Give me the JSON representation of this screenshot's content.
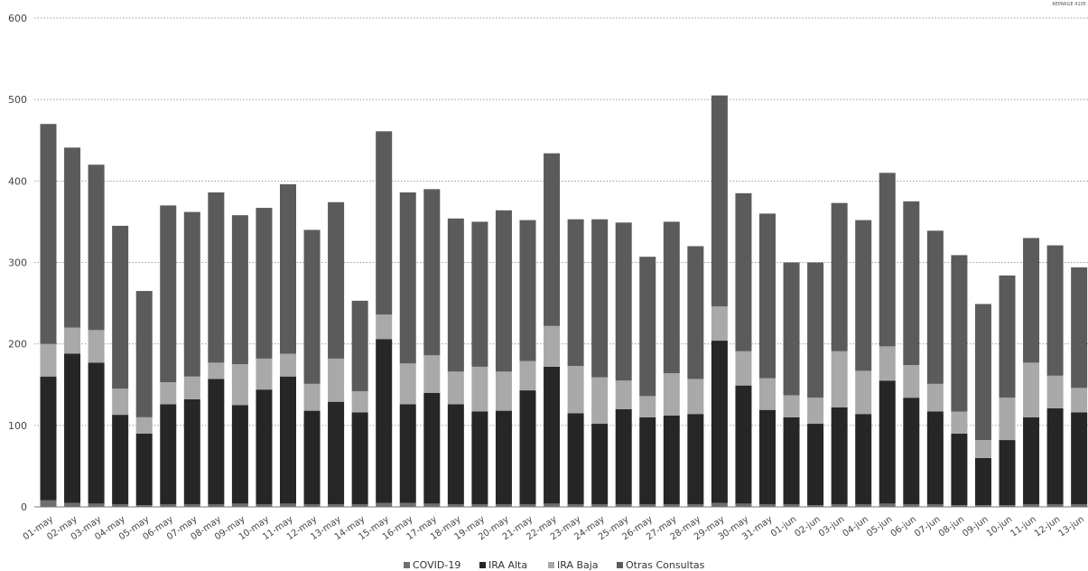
{
  "corner_note": "REPARGE 4105",
  "chart_data": {
    "type": "bar",
    "stacked": true,
    "title": "",
    "xlabel": "",
    "ylabel": "",
    "ylim": [
      0,
      600
    ],
    "yticks": [
      0,
      100,
      200,
      300,
      400,
      500,
      600
    ],
    "grid": true,
    "legend_position": "bottom",
    "categories": [
      "01-may",
      "02-may",
      "03-may",
      "04-may",
      "05-may",
      "06-may",
      "07-may",
      "08-may",
      "09-may",
      "10-may",
      "11-may",
      "12-may",
      "13-may",
      "14-may",
      "15-may",
      "16-may",
      "17-may",
      "18-may",
      "19-may",
      "20-may",
      "21-may",
      "22-may",
      "23-may",
      "24-may",
      "25-may",
      "26-may",
      "27-may",
      "28-may",
      "29-may",
      "30-may",
      "31-may",
      "01-jun",
      "02-jun",
      "03-jun",
      "04-jun",
      "05-jun",
      "06-jun",
      "07-jun",
      "08-jun",
      "09-jun",
      "10-jun",
      "11-jun",
      "12-jun",
      "13-jun"
    ],
    "series": [
      {
        "name": "COVID-19",
        "color": "#6f6f6f",
        "values": [
          8,
          5,
          4,
          3,
          2,
          3,
          3,
          3,
          4,
          3,
          4,
          3,
          3,
          3,
          5,
          5,
          4,
          3,
          3,
          3,
          3,
          4,
          3,
          3,
          3,
          3,
          3,
          3,
          5,
          4,
          3,
          3,
          2,
          3,
          3,
          4,
          3,
          3,
          2,
          2,
          2,
          3,
          3,
          3
        ]
      },
      {
        "name": "IRA Alta",
        "color": "#262626",
        "values": [
          152,
          183,
          173,
          110,
          88,
          123,
          129,
          154,
          121,
          141,
          156,
          115,
          126,
          113,
          201,
          121,
          136,
          123,
          114,
          115,
          140,
          168,
          112,
          99,
          117,
          107,
          109,
          111,
          199,
          145,
          116,
          107,
          100,
          119,
          111,
          151,
          131,
          114,
          88,
          58,
          80,
          107,
          118,
          113
        ]
      },
      {
        "name": "IRA Baja",
        "color": "#a9a9a9",
        "values": [
          40,
          32,
          40,
          32,
          20,
          27,
          28,
          20,
          50,
          38,
          28,
          33,
          53,
          26,
          30,
          50,
          46,
          40,
          55,
          48,
          36,
          50,
          58,
          57,
          35,
          26,
          52,
          43,
          42,
          42,
          39,
          27,
          32,
          69,
          53,
          42,
          40,
          34,
          27,
          22,
          52,
          67,
          40,
          30
        ]
      },
      {
        "name": "Otras Consultas",
        "color": "#5b5b5b",
        "values": [
          270,
          221,
          203,
          200,
          155,
          217,
          202,
          209,
          183,
          185,
          208,
          189,
          192,
          111,
          225,
          210,
          204,
          188,
          178,
          198,
          173,
          212,
          180,
          194,
          194,
          171,
          186,
          163,
          259,
          194,
          202,
          163,
          166,
          182,
          185,
          213,
          201,
          188,
          192,
          167,
          150,
          153,
          160,
          148
        ]
      }
    ]
  }
}
